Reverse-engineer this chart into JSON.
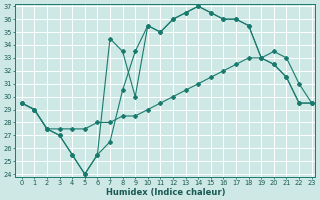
{
  "xlabel": "Humidex (Indice chaleur)",
  "bg_color": "#cde8e5",
  "grid_color": "#ffffff",
  "line_color": "#1a7a6e",
  "ylim": [
    24,
    37
  ],
  "xlim": [
    -0.5,
    23.3
  ],
  "yticks": [
    24,
    25,
    26,
    27,
    28,
    29,
    30,
    31,
    32,
    33,
    34,
    35,
    36,
    37
  ],
  "xticks": [
    0,
    1,
    2,
    3,
    4,
    5,
    6,
    7,
    8,
    9,
    10,
    11,
    12,
    13,
    14,
    15,
    16,
    17,
    18,
    19,
    20,
    21,
    22,
    23
  ],
  "series1_x": [
    0,
    1,
    2,
    3,
    4,
    5,
    6,
    7,
    8,
    9,
    10,
    11,
    12,
    13,
    14,
    15,
    16,
    17,
    18,
    19,
    20,
    21,
    22,
    23
  ],
  "series1_y": [
    29.5,
    29.0,
    27.5,
    27.5,
    27.5,
    27.5,
    28.0,
    28.0,
    28.5,
    28.5,
    29.0,
    29.5,
    30.0,
    30.5,
    31.0,
    31.5,
    32.0,
    32.5,
    33.0,
    33.0,
    33.5,
    33.0,
    31.0,
    29.5
  ],
  "series2_x": [
    0,
    1,
    2,
    3,
    4,
    5,
    6,
    7,
    8,
    9,
    10,
    11,
    12,
    13,
    14,
    15,
    16,
    17,
    18,
    19,
    20,
    21,
    22,
    23
  ],
  "series2_y": [
    29.5,
    29.0,
    27.5,
    27.0,
    25.5,
    24.0,
    25.5,
    26.5,
    30.5,
    33.5,
    35.5,
    35.0,
    36.0,
    36.5,
    37.0,
    36.5,
    36.0,
    36.0,
    35.5,
    33.0,
    32.5,
    31.5,
    29.5,
    29.5
  ],
  "series3_x": [
    0,
    1,
    2,
    3,
    4,
    5,
    6,
    7,
    8,
    9,
    10,
    11,
    12,
    13,
    14,
    15,
    16,
    17,
    18,
    19,
    20,
    21,
    22,
    23
  ],
  "series3_y": [
    29.5,
    29.0,
    27.5,
    27.0,
    25.5,
    24.0,
    25.5,
    34.5,
    33.5,
    30.0,
    35.5,
    35.0,
    36.0,
    36.5,
    37.0,
    36.5,
    36.0,
    36.0,
    35.5,
    33.0,
    32.5,
    31.5,
    29.5,
    29.5
  ]
}
